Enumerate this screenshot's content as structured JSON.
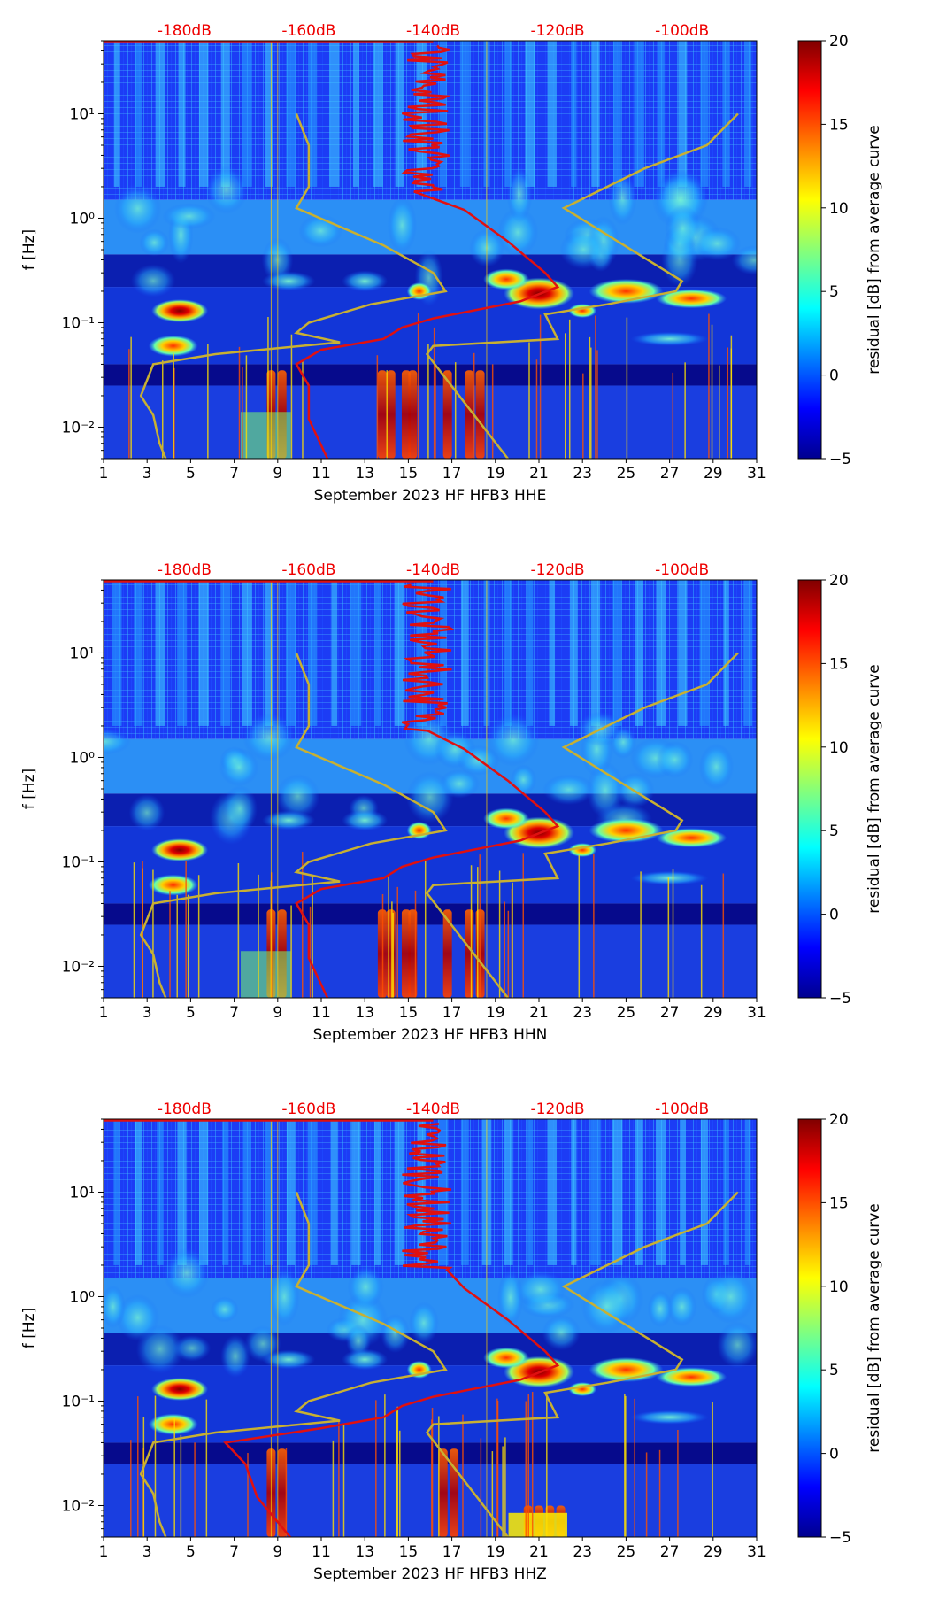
{
  "colors": {
    "psd_curve": "#e01010",
    "model_curves": "#c8b032",
    "top_label": "#ee0000"
  },
  "chart_data": [
    {
      "type": "heatmap",
      "title": "September 2023 HF HFB3  HHE",
      "xlabel": "September 2023 HF HFB3  HHE",
      "ylabel": "f [Hz]",
      "xlim": [
        1,
        31
      ],
      "ylim": [
        0.005,
        50
      ],
      "yscale": "log",
      "x_ticks": [
        "1",
        "3",
        "5",
        "7",
        "9",
        "11",
        "13",
        "15",
        "17",
        "19",
        "21",
        "23",
        "25",
        "27",
        "29",
        "31"
      ],
      "y_ticks": [
        "10⁻²",
        "10⁻¹",
        "10⁰",
        "10¹"
      ],
      "top_axis_labels": [
        "-180dB",
        "-160dB",
        "-140dB",
        "-120dB",
        "-100dB"
      ],
      "top_axis_values": [
        -180,
        -160,
        -140,
        -120,
        -100
      ],
      "colorbar": {
        "label": "residual [dB] from average curve",
        "range": [
          -5,
          20
        ],
        "ticks": [
          "−5",
          "0",
          "5",
          "10",
          "15",
          "20"
        ]
      },
      "energy_blobs_freq_hz": [
        0.13,
        0.06,
        0.2,
        0.03
      ]
    },
    {
      "type": "heatmap",
      "title": "September 2023 HF HFB3  HHN",
      "xlabel": "September 2023 HF HFB3  HHN",
      "ylabel": "f [Hz]",
      "xlim": [
        1,
        31
      ],
      "ylim": [
        0.005,
        50
      ],
      "yscale": "log",
      "x_ticks": [
        "1",
        "3",
        "5",
        "7",
        "9",
        "11",
        "13",
        "15",
        "17",
        "19",
        "21",
        "23",
        "25",
        "27",
        "29",
        "31"
      ],
      "y_ticks": [
        "10⁻²",
        "10⁻¹",
        "10⁰",
        "10¹"
      ],
      "top_axis_labels": [
        "-180dB",
        "-160dB",
        "-140dB",
        "-120dB",
        "-100dB"
      ],
      "top_axis_values": [
        -180,
        -160,
        -140,
        -120,
        -100
      ],
      "colorbar": {
        "label": "residual [dB] from average curve",
        "range": [
          -5,
          20
        ],
        "ticks": [
          "−5",
          "0",
          "5",
          "10",
          "15",
          "20"
        ]
      },
      "energy_blobs_freq_hz": [
        0.13,
        0.06,
        0.2,
        0.03
      ]
    },
    {
      "type": "heatmap",
      "title": "September 2023 HF HFB3  HHZ",
      "xlabel": "September 2023 HF HFB3  HHZ",
      "ylabel": "f [Hz]",
      "xlim": [
        1,
        31
      ],
      "ylim": [
        0.005,
        50
      ],
      "yscale": "log",
      "x_ticks": [
        "1",
        "3",
        "5",
        "7",
        "9",
        "11",
        "13",
        "15",
        "17",
        "19",
        "21",
        "23",
        "25",
        "27",
        "29",
        "31"
      ],
      "y_ticks": [
        "10⁻²",
        "10⁻¹",
        "10⁰",
        "10¹"
      ],
      "top_axis_labels": [
        "-180dB",
        "-160dB",
        "-140dB",
        "-120dB",
        "-100dB"
      ],
      "top_axis_values": [
        -180,
        -160,
        -140,
        -120,
        -100
      ],
      "colorbar": {
        "label": "residual [dB] from average curve",
        "range": [
          -5,
          20
        ],
        "ticks": [
          "−5",
          "0",
          "5",
          "10",
          "15",
          "20"
        ]
      },
      "energy_blobs_freq_hz": [
        0.13,
        0.06,
        0.2,
        0.015
      ]
    }
  ],
  "curves": {
    "psd_median": [
      {
        "db": -140,
        "f": 50
      },
      {
        "db": -140,
        "f": 12
      },
      {
        "db": -144,
        "f": 5
      },
      {
        "db": -143,
        "f": 1.8
      },
      {
        "db": -135,
        "f": 1.2
      },
      {
        "db": -128,
        "f": 0.6
      },
      {
        "db": -122,
        "f": 0.3
      },
      {
        "db": -120,
        "f": 0.22
      },
      {
        "db": -126,
        "f": 0.16
      },
      {
        "db": -140,
        "f": 0.11
      },
      {
        "db": -145,
        "f": 0.09
      },
      {
        "db": -148,
        "f": 0.07
      },
      {
        "db": -158,
        "f": 0.055
      },
      {
        "db": -162,
        "f": 0.04
      },
      {
        "db": -160,
        "f": 0.025
      },
      {
        "db": -160,
        "f": 0.012
      },
      {
        "db": -157,
        "f": 0.005
      }
    ],
    "nlnm": [
      {
        "db": -162,
        "f": 10
      },
      {
        "db": -160,
        "f": 5
      },
      {
        "db": -160,
        "f": 2
      },
      {
        "db": -162,
        "f": 1.25
      },
      {
        "db": -148,
        "f": 0.55
      },
      {
        "db": -140,
        "f": 0.3
      },
      {
        "db": -138,
        "f": 0.2
      },
      {
        "db": -150,
        "f": 0.15
      },
      {
        "db": -160,
        "f": 0.1
      },
      {
        "db": -162,
        "f": 0.08
      },
      {
        "db": -155,
        "f": 0.065
      },
      {
        "db": -175,
        "f": 0.05
      },
      {
        "db": -185,
        "f": 0.04
      },
      {
        "db": -187,
        "f": 0.02
      },
      {
        "db": -185,
        "f": 0.013
      },
      {
        "db": -184,
        "f": 0.007
      },
      {
        "db": -183,
        "f": 0.005
      }
    ],
    "nhnm": [
      {
        "db": -91,
        "f": 10
      },
      {
        "db": -96,
        "f": 5
      },
      {
        "db": -106,
        "f": 3
      },
      {
        "db": -119,
        "f": 1.25
      },
      {
        "db": -100,
        "f": 0.25
      },
      {
        "db": -101,
        "f": 0.2
      },
      {
        "db": -112,
        "f": 0.15
      },
      {
        "db": -122,
        "f": 0.12
      },
      {
        "db": -120,
        "f": 0.07
      },
      {
        "db": -140,
        "f": 0.06
      },
      {
        "db": -141,
        "f": 0.05
      },
      {
        "db": -128,
        "f": 0.005
      }
    ]
  }
}
